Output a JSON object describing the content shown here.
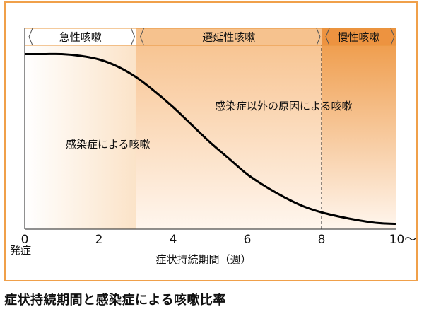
{
  "colors": {
    "frame": "#f0a04a",
    "curve": "#000000",
    "acute_bg": "#fdf1e3",
    "subacute_bg": "#f7c896",
    "chronic_bg": "#ee9640",
    "band_label_border": "#e8943a"
  },
  "phases": [
    {
      "label": "急性咳嗽",
      "from": 0,
      "to": 3
    },
    {
      "label": "遷延性咳嗽",
      "from": 3,
      "to": 8
    },
    {
      "label": "慢性咳嗽",
      "from": 8,
      "to": 10
    }
  ],
  "annotations": {
    "infection": "感染症による咳嗽",
    "non_infection": "感染症以外の原因による咳嗽"
  },
  "caption": "症状持続期間と感染症による咳嗽比率",
  "chart_data": {
    "type": "line",
    "title": "",
    "xlabel": "症状持続期間（週）",
    "ylabel": "",
    "x_ticks": [
      "0",
      "2",
      "4",
      "6",
      "8",
      "10～"
    ],
    "x_tick_values": [
      0,
      2,
      4,
      6,
      8,
      10
    ],
    "x_zero_sublabel": "発症",
    "xlim": [
      0,
      10
    ],
    "ylim": [
      0,
      1
    ],
    "dividers": [
      3,
      8
    ],
    "grid": false,
    "series": [
      {
        "x": [
          0,
          0.5,
          1,
          1.5,
          2,
          2.5,
          3,
          3.5,
          4,
          4.5,
          5,
          5.5,
          6,
          6.5,
          7,
          7.5,
          8,
          8.5,
          9,
          9.5,
          10
        ],
        "values": [
          0.99,
          0.99,
          0.99,
          0.98,
          0.96,
          0.92,
          0.86,
          0.78,
          0.69,
          0.59,
          0.49,
          0.4,
          0.31,
          0.24,
          0.18,
          0.13,
          0.095,
          0.07,
          0.05,
          0.035,
          0.03
        ]
      }
    ]
  }
}
